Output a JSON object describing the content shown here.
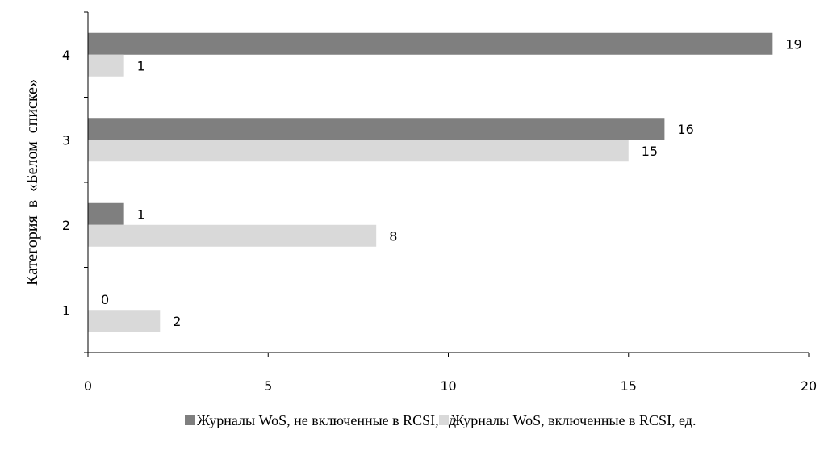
{
  "chart_data": {
    "type": "bar",
    "orientation": "horizontal",
    "categories": [
      "1",
      "2",
      "3",
      "4"
    ],
    "series": [
      {
        "name": "Журналы WoS, не включенные в RCSI, ед.",
        "values": [
          0,
          1,
          16,
          19
        ],
        "color": "#7f7f7f"
      },
      {
        "name": "Журналы WoS, включенные в RCSI, ед.",
        "values": [
          2,
          8,
          15,
          1
        ],
        "color": "#d9d9d9"
      }
    ],
    "xticks": [
      "0",
      "5",
      "10",
      "15",
      "20"
    ],
    "xlim": [
      0,
      20
    ],
    "ylabel": "Категория  в  «Белом  списке»",
    "xlabel": "",
    "title": "",
    "grid": false,
    "legend_position": "bottom"
  }
}
